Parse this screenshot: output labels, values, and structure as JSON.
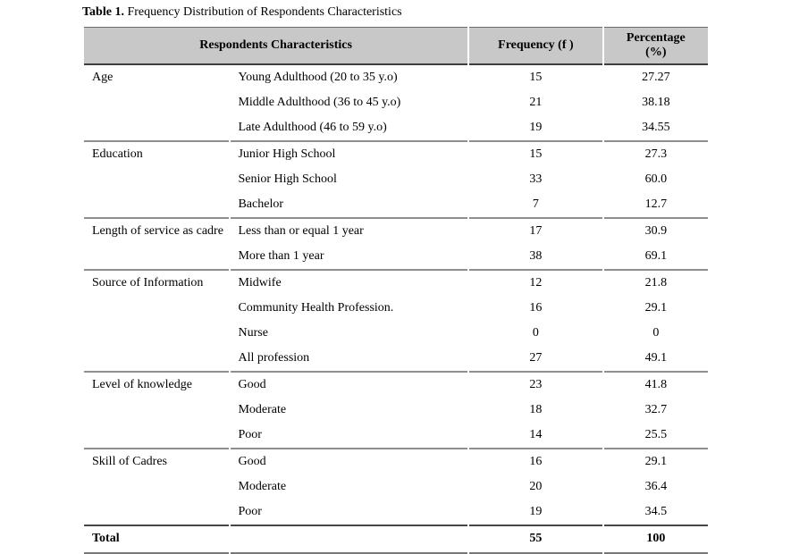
{
  "title": {
    "prefix": "Table 1.",
    "text": " Frequency Distribution of Respondents Characteristics"
  },
  "table": {
    "header": {
      "characteristics": "Respondents Characteristics",
      "frequency": "Frequency (f )",
      "percentage": "Percentage\n(%)"
    },
    "groups": [
      {
        "category": "Age",
        "rows": [
          {
            "label": "Young Adulthood (20 to 35 y.o)",
            "frequency": "15",
            "percentage": "27.27"
          },
          {
            "label": "Middle Adulthood (36 to 45 y.o)",
            "frequency": "21",
            "percentage": "38.18"
          },
          {
            "label": "Late Adulthood (46 to 59 y.o)",
            "frequency": "19",
            "percentage": "34.55"
          }
        ]
      },
      {
        "category": "Education",
        "rows": [
          {
            "label": "Junior High School",
            "frequency": "15",
            "percentage": "27.3"
          },
          {
            "label": "Senior High School",
            "frequency": "33",
            "percentage": "60.0"
          },
          {
            "label": "Bachelor",
            "frequency": "7",
            "percentage": "12.7"
          }
        ]
      },
      {
        "category": "Length of service as cadre",
        "rows": [
          {
            "label": "Less than or equal 1 year",
            "frequency": "17",
            "percentage": "30.9"
          },
          {
            "label": "More than 1 year",
            "frequency": "38",
            "percentage": "69.1"
          }
        ]
      },
      {
        "category": "Source of Information",
        "rows": [
          {
            "label": "Midwife",
            "frequency": "12",
            "percentage": "21.8"
          },
          {
            "label": "Community Health Profession.",
            "frequency": "16",
            "percentage": "29.1"
          },
          {
            "label": "Nurse",
            "frequency": "0",
            "percentage": "0"
          },
          {
            "label": "All profession",
            "frequency": "27",
            "percentage": "49.1"
          }
        ]
      },
      {
        "category": "Level of knowledge",
        "rows": [
          {
            "label": "Good",
            "frequency": "23",
            "percentage": "41.8"
          },
          {
            "label": "Moderate",
            "frequency": "18",
            "percentage": "32.7"
          },
          {
            "label": "Poor",
            "frequency": "14",
            "percentage": "25.5"
          }
        ]
      },
      {
        "category": "Skill of Cadres",
        "rows": [
          {
            "label": "Good",
            "frequency": "16",
            "percentage": "29.1"
          },
          {
            "label": "Moderate",
            "frequency": "20",
            "percentage": "36.4"
          },
          {
            "label": "Poor",
            "frequency": "19",
            "percentage": "34.5"
          }
        ]
      }
    ],
    "total": {
      "label": "Total",
      "frequency": "55",
      "percentage": "100"
    }
  },
  "colors": {
    "header_bg": "#c8c8c8",
    "header_top_line": "#6b6b6b",
    "header_bottom_line": "#3d3d3d",
    "section_line": "#8f8f8f",
    "total_top_line": "#474747",
    "table_bottom_line": "#787878",
    "text": "#000000"
  },
  "chart_data": {
    "type": "table",
    "title": "Table 1. Frequency Distribution of Respondents Characteristics",
    "columns": [
      "Respondents Characteristics (group)",
      "Respondents Characteristics (item)",
      "Frequency (f )",
      "Percentage (%)"
    ],
    "rows": [
      [
        "Age",
        "Young Adulthood (20 to 35 y.o)",
        15,
        27.27
      ],
      [
        "Age",
        "Middle Adulthood (36 to 45 y.o)",
        21,
        38.18
      ],
      [
        "Age",
        "Late Adulthood (46 to 59 y.o)",
        19,
        34.55
      ],
      [
        "Education",
        "Junior High School",
        15,
        27.3
      ],
      [
        "Education",
        "Senior High School",
        33,
        60.0
      ],
      [
        "Education",
        "Bachelor",
        7,
        12.7
      ],
      [
        "Length of service as cadre",
        "Less than or equal 1 year",
        17,
        30.9
      ],
      [
        "Length of service as cadre",
        "More than 1 year",
        38,
        69.1
      ],
      [
        "Source of Information",
        "Midwife",
        12,
        21.8
      ],
      [
        "Source of Information",
        "Community Health Profession.",
        16,
        29.1
      ],
      [
        "Source of Information",
        "Nurse",
        0,
        0
      ],
      [
        "Source of Information",
        "All profession",
        27,
        49.1
      ],
      [
        "Level of knowledge",
        "Good",
        23,
        41.8
      ],
      [
        "Level of knowledge",
        "Moderate",
        18,
        32.7
      ],
      [
        "Level of knowledge",
        "Poor",
        14,
        25.5
      ],
      [
        "Skill of Cadres",
        "Good",
        16,
        29.1
      ],
      [
        "Skill of Cadres",
        "Moderate",
        20,
        36.4
      ],
      [
        "Skill of Cadres",
        "Poor",
        19,
        34.5
      ],
      [
        "Total",
        "",
        55,
        100
      ]
    ]
  }
}
